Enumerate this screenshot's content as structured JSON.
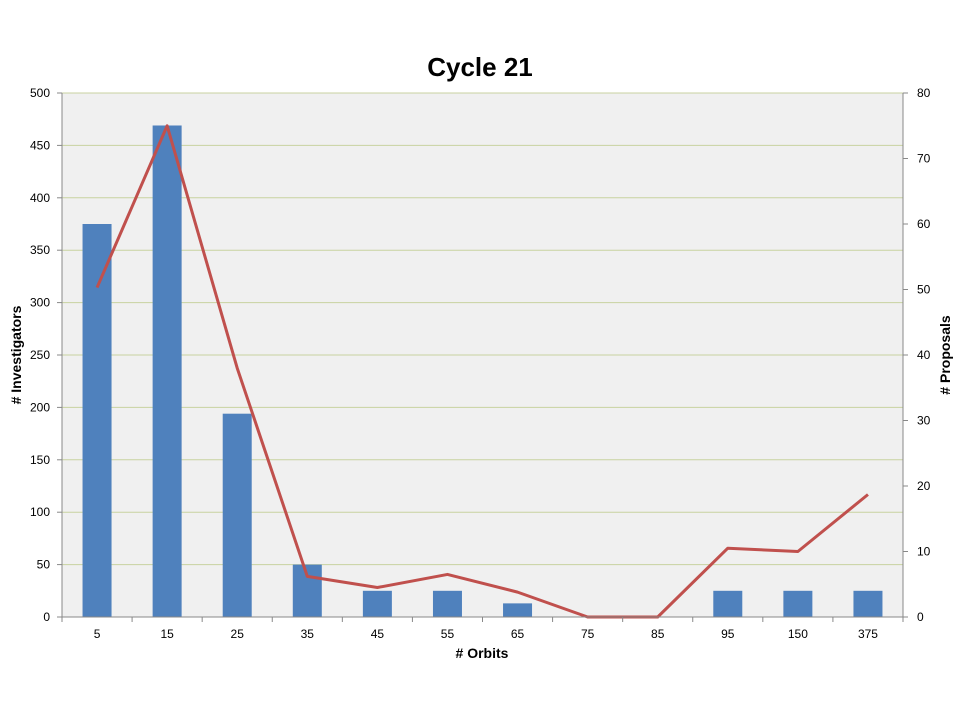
{
  "chart_data": {
    "type": "bar",
    "title": "Cycle 21",
    "xlabel": "# Orbits",
    "ylabel": "# Investigators",
    "y2label": "# Proposals",
    "categories": [
      "5",
      "15",
      "25",
      "35",
      "45",
      "55",
      "65",
      "75",
      "85",
      "95",
      "150",
      "375"
    ],
    "ylim": [
      0,
      500
    ],
    "y2lim": [
      0,
      80
    ],
    "yticks": [
      "0",
      "50",
      "100",
      "150",
      "200",
      "250",
      "300",
      "350",
      "400",
      "450",
      "500"
    ],
    "y2ticks": [
      "0",
      "10",
      "20",
      "30",
      "40",
      "50",
      "60",
      "70",
      "80"
    ],
    "series": [
      {
        "type": "bar",
        "axis": "left",
        "color": "#4F81BD",
        "values": [
          375,
          469,
          194,
          50,
          25,
          25,
          13,
          0,
          0,
          25,
          25,
          25
        ]
      },
      {
        "type": "line",
        "axis": "right",
        "color": "#C0504D",
        "values": [
          50.3,
          75,
          38,
          6.2,
          4.5,
          6.5,
          3.8,
          0,
          0,
          10.5,
          10,
          18.7
        ]
      }
    ],
    "grid": true,
    "gridColor": "#C8D2A0",
    "plotBackground": "#F0F0F0",
    "legend": "none"
  }
}
